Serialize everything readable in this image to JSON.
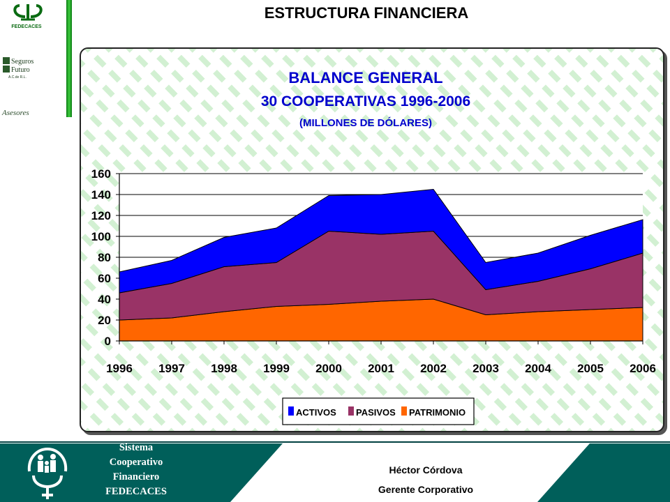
{
  "slide": {
    "title": "ESTRUCTURA FINANCIERA"
  },
  "logos": {
    "fedecaces": "FEDECACES",
    "seguros_line1": "Seguros",
    "seguros_line2": "Futuro",
    "seguros_line3": "A.C.de R.L.",
    "asesores": "Asesores"
  },
  "footer": {
    "org_line1": "Sistema",
    "org_line2": "Cooperativo",
    "org_line3": "Financiero",
    "org_line4": "FEDECACES",
    "person_name": "Héctor Córdova",
    "person_title": "Gerente Corporativo"
  },
  "colors": {
    "activos": "#0000ff",
    "pasivos": "#993366",
    "patrimonio": "#ff6600",
    "footer_band": "#005f5a",
    "stripe": "#d2f0d2"
  },
  "chart_data": {
    "type": "area",
    "stacked": true,
    "title_line1": "BALANCE GENERAL",
    "title_line2": "30 COOPERATIVAS 1996-2006",
    "title_line3": "(MILLONES DE DÓLARES)",
    "categories": [
      "1996",
      "1997",
      "1998",
      "1999",
      "2000",
      "2001",
      "2002",
      "2003",
      "2004",
      "2005",
      "2006"
    ],
    "yticks": [
      "0",
      "20",
      "40",
      "60",
      "80",
      "100",
      "120",
      "140",
      "160"
    ],
    "ylim": [
      0,
      160
    ],
    "grid": true,
    "legend_position": "bottom-center",
    "series": [
      {
        "name": "PATRIMONIO",
        "values": [
          20,
          22,
          28,
          33,
          35,
          38,
          40,
          25,
          28,
          30,
          32
        ]
      },
      {
        "name": "PASIVOS",
        "values": [
          26,
          33,
          43,
          42,
          70,
          64,
          65,
          24,
          29,
          39,
          52
        ]
      },
      {
        "name": "ACTIVOS",
        "values": [
          20,
          22,
          28,
          33,
          34,
          38,
          40,
          26,
          27,
          32,
          32
        ]
      }
    ],
    "legend": [
      "ACTIVOS",
      "PASIVOS",
      "PATRIMONIO"
    ]
  }
}
